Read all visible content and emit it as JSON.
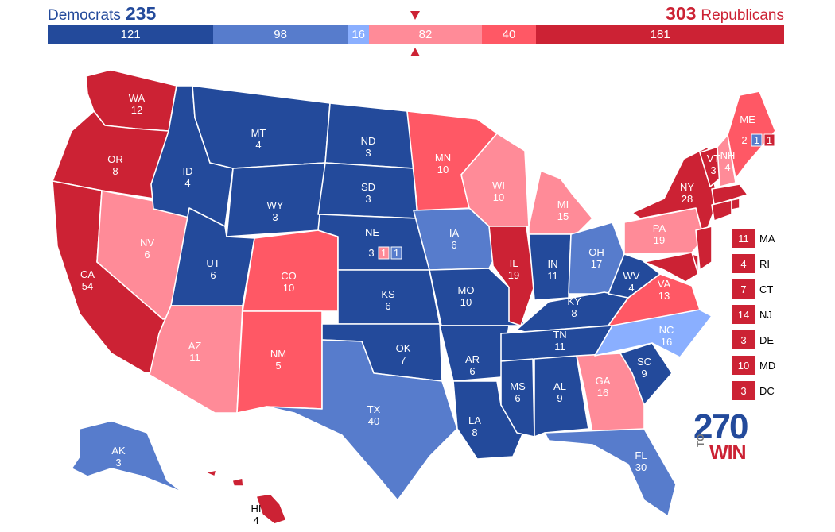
{
  "header": {
    "dem_label": "Democrats",
    "dem_total": "235",
    "rep_total": "303",
    "rep_label": "Republicans"
  },
  "colors": {
    "safe_dem": "#234a9b",
    "likely_dem": "#577ccc",
    "lean_dem": "#8aafff",
    "lean_rep": "#ff8b98",
    "likely_rep": "#ff5865",
    "safe_rep": "#cc2234",
    "background": "#ffffff"
  },
  "bar": [
    {
      "value": 121,
      "label": "121",
      "color": "#234a9b"
    },
    {
      "value": 98,
      "label": "98",
      "color": "#577ccc"
    },
    {
      "value": 16,
      "label": "16",
      "color": "#8aafff"
    },
    {
      "value": 82,
      "label": "82",
      "color": "#ff8b98"
    },
    {
      "value": 40,
      "label": "40",
      "color": "#ff5865"
    },
    {
      "value": 181,
      "label": "181",
      "color": "#cc2234"
    }
  ],
  "states": {
    "WA": {
      "ab": "WA",
      "ev": "12",
      "rating": "safe_rep"
    },
    "OR": {
      "ab": "OR",
      "ev": "8",
      "rating": "safe_rep"
    },
    "CA": {
      "ab": "CA",
      "ev": "54",
      "rating": "safe_rep"
    },
    "NV": {
      "ab": "NV",
      "ev": "6",
      "rating": "lean_rep"
    },
    "ID": {
      "ab": "ID",
      "ev": "4",
      "rating": "safe_dem"
    },
    "MT": {
      "ab": "MT",
      "ev": "4",
      "rating": "safe_dem"
    },
    "WY": {
      "ab": "WY",
      "ev": "3",
      "rating": "safe_dem"
    },
    "UT": {
      "ab": "UT",
      "ev": "6",
      "rating": "safe_dem"
    },
    "AZ": {
      "ab": "AZ",
      "ev": "11",
      "rating": "lean_rep"
    },
    "CO": {
      "ab": "CO",
      "ev": "10",
      "rating": "likely_rep"
    },
    "NM": {
      "ab": "NM",
      "ev": "5",
      "rating": "likely_rep"
    },
    "ND": {
      "ab": "ND",
      "ev": "3",
      "rating": "safe_dem"
    },
    "SD": {
      "ab": "SD",
      "ev": "3",
      "rating": "safe_dem"
    },
    "NE": {
      "ab": "NE",
      "ev": "3",
      "rating": "safe_dem"
    },
    "KS": {
      "ab": "KS",
      "ev": "6",
      "rating": "safe_dem"
    },
    "OK": {
      "ab": "OK",
      "ev": "7",
      "rating": "safe_dem"
    },
    "TX": {
      "ab": "TX",
      "ev": "40",
      "rating": "likely_dem"
    },
    "MN": {
      "ab": "MN",
      "ev": "10",
      "rating": "likely_rep"
    },
    "IA": {
      "ab": "IA",
      "ev": "6",
      "rating": "likely_dem"
    },
    "MO": {
      "ab": "MO",
      "ev": "10",
      "rating": "safe_dem"
    },
    "AR": {
      "ab": "AR",
      "ev": "6",
      "rating": "safe_dem"
    },
    "LA": {
      "ab": "LA",
      "ev": "8",
      "rating": "safe_dem"
    },
    "WI": {
      "ab": "WI",
      "ev": "10",
      "rating": "lean_rep"
    },
    "IL": {
      "ab": "IL",
      "ev": "19",
      "rating": "safe_rep"
    },
    "MI": {
      "ab": "MI",
      "ev": "15",
      "rating": "lean_rep"
    },
    "IN": {
      "ab": "IN",
      "ev": "11",
      "rating": "safe_dem"
    },
    "OH": {
      "ab": "OH",
      "ev": "17",
      "rating": "likely_dem"
    },
    "KY": {
      "ab": "KY",
      "ev": "8",
      "rating": "safe_dem"
    },
    "TN": {
      "ab": "TN",
      "ev": "11",
      "rating": "safe_dem"
    },
    "MS": {
      "ab": "MS",
      "ev": "6",
      "rating": "safe_dem"
    },
    "AL": {
      "ab": "AL",
      "ev": "9",
      "rating": "safe_dem"
    },
    "GA": {
      "ab": "GA",
      "ev": "16",
      "rating": "lean_rep"
    },
    "FL": {
      "ab": "FL",
      "ev": "30",
      "rating": "likely_dem"
    },
    "SC": {
      "ab": "SC",
      "ev": "9",
      "rating": "safe_dem"
    },
    "NC": {
      "ab": "NC",
      "ev": "16",
      "rating": "lean_dem"
    },
    "VA": {
      "ab": "VA",
      "ev": "13",
      "rating": "likely_rep"
    },
    "WV": {
      "ab": "WV",
      "ev": "4",
      "rating": "safe_dem"
    },
    "PA": {
      "ab": "PA",
      "ev": "19",
      "rating": "lean_rep"
    },
    "NY": {
      "ab": "NY",
      "ev": "28",
      "rating": "safe_rep"
    },
    "VT": {
      "ab": "VT",
      "ev": "3",
      "rating": "safe_rep"
    },
    "NH": {
      "ab": "NH",
      "ev": "4",
      "rating": "lean_rep"
    },
    "ME": {
      "ab": "ME",
      "ev": "2",
      "rating": "likely_rep"
    },
    "AK": {
      "ab": "AK",
      "ev": "3",
      "rating": "likely_dem"
    },
    "HI": {
      "ab": "HI",
      "ev": "4",
      "rating": "safe_rep"
    }
  },
  "splits": {
    "NE": [
      "1",
      "1"
    ],
    "ME": [
      "1",
      "1"
    ]
  },
  "small_states": [
    {
      "ab": "MA",
      "ev": "11"
    },
    {
      "ab": "RI",
      "ev": "4"
    },
    {
      "ab": "CT",
      "ev": "7"
    },
    {
      "ab": "NJ",
      "ev": "14"
    },
    {
      "ab": "DE",
      "ev": "3"
    },
    {
      "ab": "MD",
      "ev": "10"
    },
    {
      "ab": "DC",
      "ev": "3"
    }
  ],
  "logo": {
    "top": "270",
    "to": "TO",
    "win": "WIN"
  }
}
